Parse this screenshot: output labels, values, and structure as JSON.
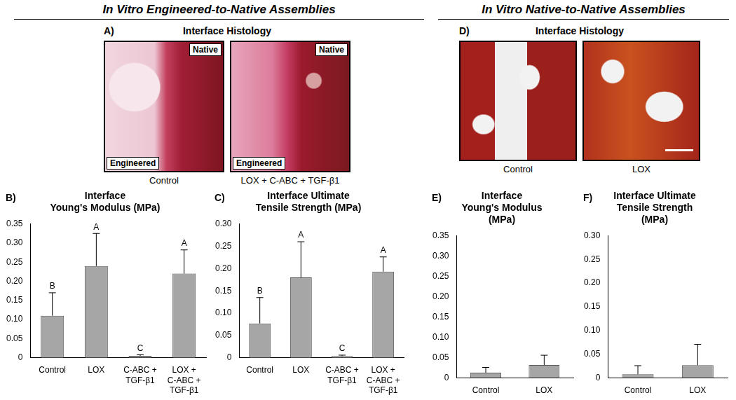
{
  "headers": [
    "In Vitro Engineered-to-Native Assemblies",
    "In Vitro Native-to-Native Assemblies"
  ],
  "histology": [
    {
      "panel": "A)",
      "title": "Interface Histology",
      "images": [
        {
          "caption": "Control",
          "top_label": "Native",
          "bottom_label": "Engineered"
        },
        {
          "caption": "LOX + C-ABC + TGF-β1",
          "top_label": "Native",
          "bottom_label": "Engineered"
        }
      ]
    },
    {
      "panel": "D)",
      "title": "Interface Histology",
      "images": [
        {
          "caption": "Control"
        },
        {
          "caption": "LOX"
        }
      ]
    }
  ],
  "chart_data": [
    {
      "panel": "B)",
      "type": "bar",
      "title": [
        "Interface",
        "Young's Modulus (MPa)"
      ],
      "categories": [
        "Control",
        "LOX",
        "C-ABC + TGF-β1",
        "LOX + C-ABC + TGF-β1"
      ],
      "values": [
        0.11,
        0.24,
        0.005,
        0.22
      ],
      "errors": [
        0.06,
        0.085,
        0.003,
        0.062
      ],
      "annotations": [
        "B",
        "A",
        "C",
        "A"
      ],
      "color": "#a6a6a6",
      "ylim": [
        0,
        0.35
      ],
      "yticks": [
        0,
        0.05,
        {
          "value": 0.1,
          "label": "0.10"
        },
        0.15,
        {
          "value": 0.2,
          "label": "0.20"
        },
        0.25,
        {
          "value": 0.3,
          "label": "0.30"
        },
        0.35
      ],
      "grid": false
    },
    {
      "panel": "C)",
      "type": "bar",
      "title": [
        "Interface Ultimate",
        "Tensile Strength (MPa)"
      ],
      "categories": [
        "Control",
        "LOX",
        "C-ABC + TGF-β1",
        "LOX + C-ABC + TGF-β1"
      ],
      "values": [
        0.077,
        0.18,
        0.004,
        0.193
      ],
      "errors": [
        0.058,
        0.08,
        0.002,
        0.033
      ],
      "annotations": [
        "B",
        "A",
        "C",
        "A"
      ],
      "color": "#a6a6a6",
      "ylim": [
        0,
        0.3
      ],
      "yticks": [
        0,
        0.05,
        {
          "value": 0.1,
          "label": "0.10"
        },
        0.15,
        {
          "value": 0.2,
          "label": "0.20"
        },
        0.25,
        {
          "value": 0.3,
          "label": "0.30"
        }
      ],
      "grid": false
    },
    {
      "panel": "E)",
      "type": "bar",
      "title": [
        "Interface",
        "Young's Modulus",
        "(MPa)"
      ],
      "categories": [
        "Control",
        "LOX"
      ],
      "values": [
        0.013,
        0.032
      ],
      "errors": [
        0.013,
        0.024
      ],
      "color": "#a6a6a6",
      "ylim": [
        0,
        0.35
      ],
      "yticks": [
        0,
        0.05,
        {
          "value": 0.1,
          "label": "0.10"
        },
        0.15,
        {
          "value": 0.2,
          "label": "0.20"
        },
        0.25,
        {
          "value": 0.3,
          "label": "0.30"
        },
        0.35
      ],
      "grid": false
    },
    {
      "panel": "F)",
      "type": "bar",
      "title": [
        "Interface Ultimate",
        "Tensile Strength",
        "(MPa)"
      ],
      "categories": [
        "Control",
        "LOX"
      ],
      "values": [
        0.008,
        0.027
      ],
      "errors": [
        0.018,
        0.044
      ],
      "color": "#a6a6a6",
      "ylim": [
        0,
        0.3
      ],
      "yticks": [
        0,
        0.05,
        {
          "value": 0.1,
          "label": "0.10"
        },
        0.15,
        {
          "value": 0.2,
          "label": "0.20"
        },
        0.25,
        {
          "value": 0.3,
          "label": "0.30"
        }
      ],
      "grid": false
    }
  ]
}
